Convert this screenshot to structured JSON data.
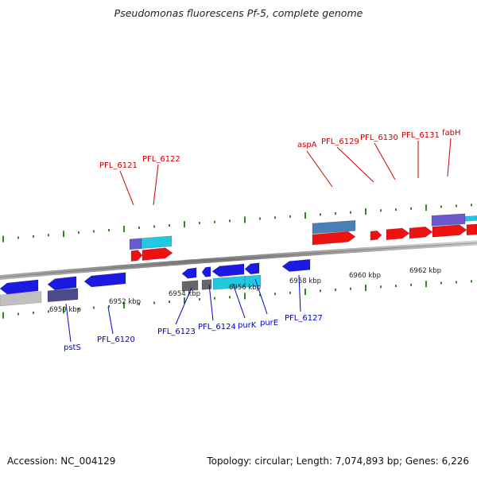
{
  "title": "Pseudomonas fluorescens Pf-5, complete genome",
  "footer": {
    "accession": "Accession: NC_004129",
    "summary": "Topology: circular; Length: 7,074,893 bp; Genes: 6,226"
  },
  "colors": {
    "backbone": "#8a8a8a",
    "tick": "#2f8a1e",
    "forward_label": "#cc0000",
    "reverse_label": "#0000cc",
    "forward_gene": "#ee1111",
    "reverse_gene": "#1a1ae0",
    "cyan_feature": "#22c8e0",
    "purple_feature": "#6a5acd",
    "steel_feature": "#4a7fb5",
    "gray_feature": "#666666",
    "light_gray_feature": "#c0c0c0",
    "navy_feature": "#4b4b8a"
  },
  "scale": {
    "unit": "kbp",
    "ticks": [
      {
        "label": "6950 kbp"
      },
      {
        "label": "6952 kbp"
      },
      {
        "label": "6954 kbp"
      },
      {
        "label": "6956 kbp"
      },
      {
        "label": "6958 kbp"
      },
      {
        "label": "6960 kbp"
      },
      {
        "label": "6962 kbp"
      }
    ]
  },
  "forward_labels": [
    "PFL_6121",
    "PFL_6122",
    "aspA",
    "PFL_6129",
    "PFL_6130",
    "PFL_6131",
    "fabH"
  ],
  "reverse_labels": [
    "pstS",
    "PFL_6120",
    "PFL_6123",
    "PFL_6124",
    "purK",
    "purE",
    "PFL_6127"
  ]
}
